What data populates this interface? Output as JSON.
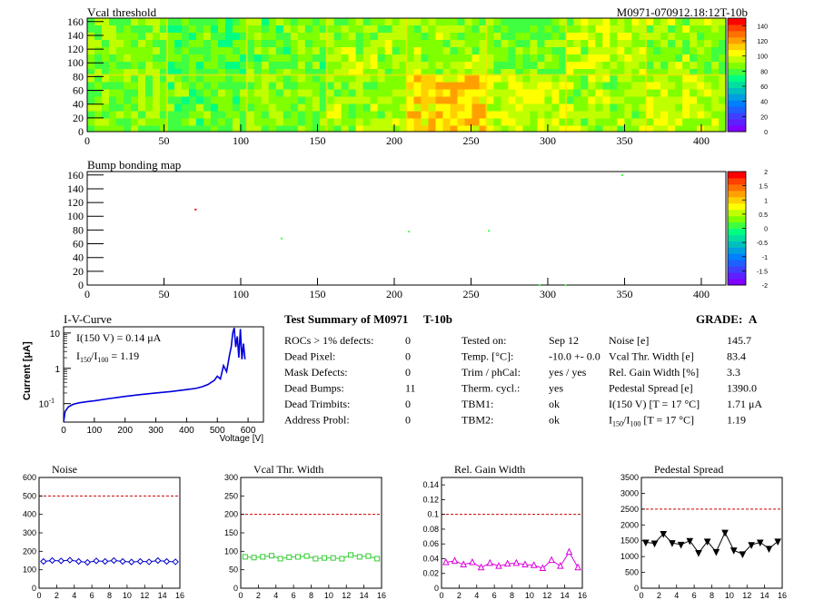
{
  "colors": {
    "noise": "#0000cc",
    "vcal_width": "#33cc33",
    "gain_width": "#dd00dd",
    "pedestal": "#000000",
    "cut_line": "#cc0000",
    "iv_curve": "#0000dd"
  },
  "palette": [
    "#7f00ff",
    "#5f1fff",
    "#3f3fff",
    "#1f5fff",
    "#007fff",
    "#009fdf",
    "#00bfbf",
    "#00dfa0",
    "#00ff80",
    "#3fff40",
    "#80ff00",
    "#bfff00",
    "#ffff00",
    "#ffd000",
    "#ffa000",
    "#ff7000",
    "#ff4000",
    "#ff0000"
  ],
  "panels": {
    "vcal": {
      "title": "Vcal threshold",
      "id_label": "M0971-070912.18:12T-10b",
      "x_ticks": [
        "0",
        "50",
        "100",
        "150",
        "200",
        "250",
        "300",
        "350",
        "400"
      ],
      "y_ticks": [
        "0",
        "20",
        "40",
        "60",
        "80",
        "100",
        "120",
        "140",
        "160"
      ],
      "z_ticks": [
        "0",
        "20",
        "40",
        "60",
        "80",
        "100",
        "120",
        "140"
      ]
    },
    "bump": {
      "title": "Bump bonding map",
      "x_ticks": [
        "0",
        "50",
        "100",
        "150",
        "200",
        "250",
        "300",
        "350",
        "400"
      ],
      "y_ticks": [
        "0",
        "20",
        "40",
        "60",
        "80",
        "100",
        "120",
        "140",
        "160"
      ],
      "z_ticks": [
        "-2",
        "-1.5",
        "-1",
        "-0.5",
        "0",
        "0.5",
        "1",
        "1.5",
        "2"
      ]
    },
    "iv": {
      "title": "I-V-Curve",
      "ylabel": "Current [μA]",
      "xlabel": "Voltage [V]",
      "x_ticks": [
        "0",
        "100",
        "200",
        "300",
        "400",
        "500",
        "600"
      ],
      "y_ticks": [
        "10",
        "1",
        "10"
      ],
      "y_tick_exps": [
        "-1",
        "",
        ""
      ],
      "annot1": "I(150 V) = 0.14 μA",
      "annot2_main": "I",
      "annot2_sub1": "150",
      "annot2_mid": "/I",
      "annot2_sub2": "100",
      "annot2_val": " =  1.19"
    }
  },
  "summary": {
    "title": "Test Summary of M0971",
    "title_suffix": "T-10b",
    "grade_label": "GRADE:",
    "grade": "A",
    "col1": [
      {
        "label": "ROCs > 1% defects:",
        "value": "0"
      },
      {
        "label": "Dead Pixel:",
        "value": "0"
      },
      {
        "label": "Mask Defects:",
        "value": "0"
      },
      {
        "label": "Dead Bumps:",
        "value": "11"
      },
      {
        "label": "Dead Trimbits:",
        "value": "0"
      },
      {
        "label": "Address Probl:",
        "value": "0"
      }
    ],
    "col2": [
      {
        "label": "Tested on:",
        "value": "Sep 12"
      },
      {
        "label": "Temp. [°C]:",
        "value": "-10.0 +- 0.0"
      },
      {
        "label": "Trim / phCal:",
        "value": "yes / yes"
      },
      {
        "label": "Therm. cycl.:",
        "value": "yes"
      },
      {
        "label": "TBM1:",
        "value": "ok"
      },
      {
        "label": "TBM2:",
        "value": "ok"
      }
    ],
    "col3": [
      {
        "label": "Noise [e]",
        "value": "145.7"
      },
      {
        "label": "Vcal Thr. Width [e]",
        "value": "83.4"
      },
      {
        "label": "Rel. Gain Width [%]",
        "value": "3.3"
      },
      {
        "label": "Pedestal Spread [e]",
        "value": "1390.0"
      },
      {
        "label": "I(150 V) [T = 17 °C]",
        "value": "1.71 μA"
      },
      {
        "label": "I150/I100 [T = 17 °C]",
        "value": "1.19"
      }
    ],
    "col3_last_label_parts": [
      "I",
      "150",
      "/I",
      "100",
      "  [T = 17 °C]"
    ]
  },
  "chart_data": [
    {
      "type": "heatmap",
      "title": "Vcal threshold",
      "xlim": [
        0,
        416
      ],
      "ylim": [
        0,
        160
      ],
      "zlim": [
        0,
        150
      ],
      "roc_grid": {
        "cols": 8,
        "rows": 2
      },
      "roc_mean_values": [
        [
          88,
          82,
          85,
          92,
          90,
          86,
          94,
          90
        ],
        [
          86,
          84,
          88,
          90,
          110,
          96,
          92,
          96
        ]
      ]
    },
    {
      "type": "scatter",
      "title": "Bump bonding map",
      "xlim": [
        0,
        416
      ],
      "ylim": [
        0,
        160
      ],
      "zlim": [
        -2,
        2
      ],
      "points": [
        {
          "x": 70,
          "y": 111,
          "z": 2
        },
        {
          "x": 126,
          "y": 69,
          "z": 0
        },
        {
          "x": 209,
          "y": 79,
          "z": 0
        },
        {
          "x": 261,
          "y": 80,
          "z": 0
        },
        {
          "x": 348,
          "y": 161,
          "z": 0
        },
        {
          "x": 294,
          "y": 1,
          "z": 0
        },
        {
          "x": 311,
          "y": 1,
          "z": 0
        }
      ]
    },
    {
      "type": "line",
      "title": "I-V-Curve",
      "xlabel": "Voltage [V]",
      "ylabel": "Current [μA]",
      "xlim": [
        0,
        650
      ],
      "ylim": [
        0.03,
        15
      ],
      "yscale": "log",
      "x": [
        0,
        5,
        15,
        30,
        50,
        80,
        100,
        150,
        200,
        250,
        300,
        350,
        400,
        430,
        450,
        470,
        480,
        490,
        500,
        510,
        520,
        530,
        540,
        545,
        550,
        555,
        560,
        565,
        570,
        575,
        580,
        585,
        590
      ],
      "y": [
        0.03,
        0.06,
        0.08,
        0.095,
        0.105,
        0.115,
        0.12,
        0.14,
        0.16,
        0.18,
        0.2,
        0.22,
        0.25,
        0.27,
        0.3,
        0.35,
        0.4,
        0.45,
        0.6,
        0.5,
        1.2,
        0.8,
        2.5,
        4,
        10,
        14,
        4,
        8,
        2,
        13,
        1.8,
        5,
        1.8
      ]
    },
    {
      "type": "line",
      "title": "Noise",
      "xlim": [
        0,
        16
      ],
      "ylim": [
        0,
        600
      ],
      "cut": 500,
      "x_ticks": [
        "0",
        "2",
        "4",
        "6",
        "8",
        "10",
        "12",
        "14",
        "16"
      ],
      "y_ticks": [
        "0",
        "100",
        "200",
        "300",
        "400",
        "500",
        "600"
      ],
      "x": [
        0,
        1,
        2,
        3,
        4,
        5,
        6,
        7,
        8,
        9,
        10,
        11,
        12,
        13,
        14,
        15
      ],
      "y": [
        145,
        150,
        148,
        152,
        145,
        140,
        148,
        145,
        150,
        145,
        142,
        145,
        143,
        150,
        145,
        143
      ]
    },
    {
      "type": "line",
      "title": "Vcal Thr. Width",
      "xlim": [
        0,
        16
      ],
      "ylim": [
        0,
        300
      ],
      "cut": 200,
      "x_ticks": [
        "0",
        "2",
        "4",
        "6",
        "8",
        "10",
        "12",
        "14",
        "16"
      ],
      "y_ticks": [
        "0",
        "50",
        "100",
        "150",
        "200",
        "250",
        "300"
      ],
      "x": [
        0,
        1,
        2,
        3,
        4,
        5,
        6,
        7,
        8,
        9,
        10,
        11,
        12,
        13,
        14,
        15
      ],
      "y": [
        85,
        83,
        85,
        88,
        80,
        84,
        85,
        87,
        80,
        82,
        82,
        80,
        90,
        85,
        87,
        80
      ]
    },
    {
      "type": "line",
      "title": "Rel. Gain Width",
      "xlim": [
        0,
        16
      ],
      "ylim": [
        0,
        0.15
      ],
      "cut": 0.1,
      "x_ticks": [
        "0",
        "2",
        "4",
        "6",
        "8",
        "10",
        "12",
        "14",
        "16"
      ],
      "y_ticks": [
        "0",
        "0.02",
        "0.04",
        "0.06",
        "0.08",
        "0.1",
        "0.12",
        "0.14"
      ],
      "x": [
        0,
        1,
        2,
        3,
        4,
        5,
        6,
        7,
        8,
        9,
        10,
        11,
        12,
        13,
        14,
        15
      ],
      "y": [
        0.035,
        0.037,
        0.032,
        0.035,
        0.028,
        0.034,
        0.03,
        0.033,
        0.034,
        0.032,
        0.031,
        0.027,
        0.038,
        0.03,
        0.049,
        0.028
      ]
    },
    {
      "type": "line",
      "title": "Pedestal Spread",
      "xlim": [
        0,
        16
      ],
      "ylim": [
        0,
        3500
      ],
      "cut": 2500,
      "x_ticks": [
        "0",
        "2",
        "4",
        "6",
        "8",
        "10",
        "12",
        "14",
        "16"
      ],
      "y_ticks": [
        "0",
        "500",
        "1000",
        "1500",
        "2000",
        "2500",
        "3000",
        "3500"
      ],
      "x": [
        0,
        1,
        2,
        3,
        4,
        5,
        6,
        7,
        8,
        9,
        10,
        11,
        12,
        13,
        14,
        15
      ],
      "y": [
        1450,
        1420,
        1720,
        1430,
        1380,
        1500,
        1120,
        1480,
        1150,
        1760,
        1200,
        1080,
        1370,
        1450,
        1250,
        1480
      ]
    }
  ]
}
